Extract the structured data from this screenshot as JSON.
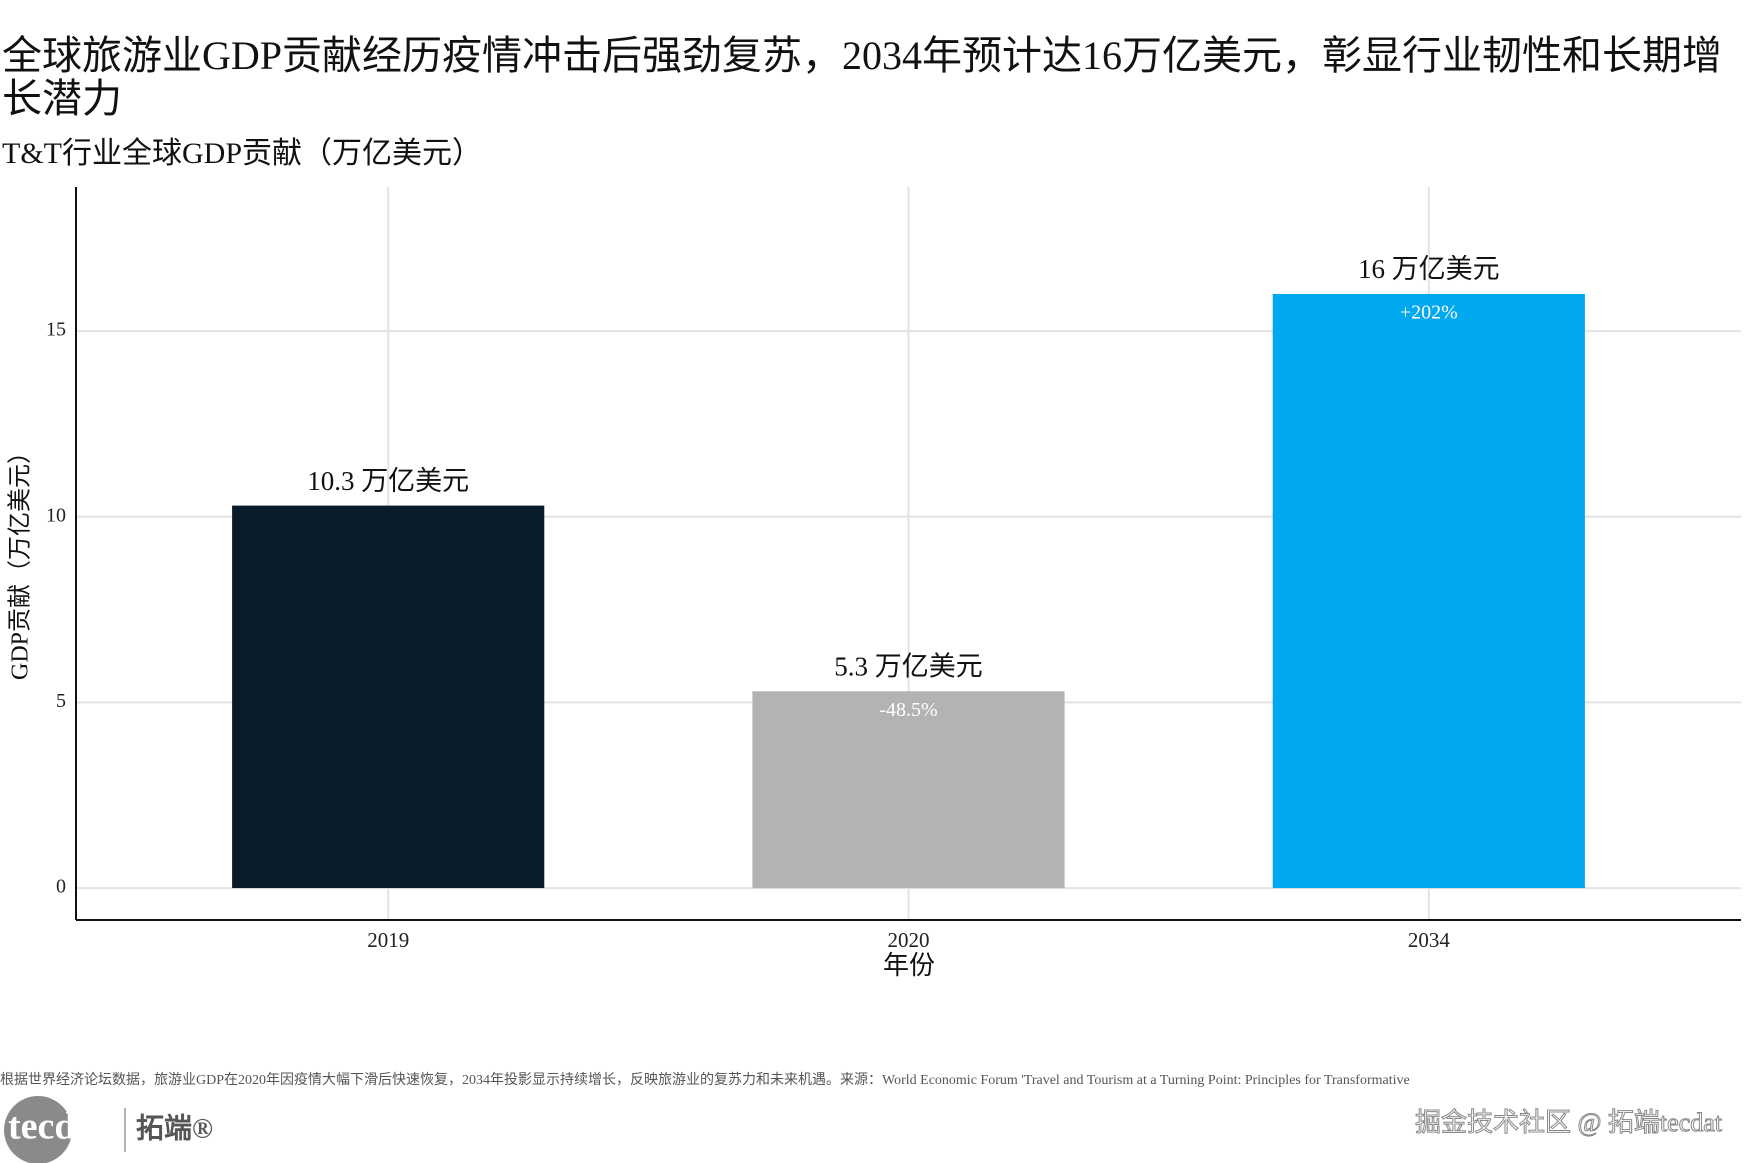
{
  "chart_data": {
    "type": "bar",
    "title": "全球旅游业GDP贡献经历疫情冲击后强劲复苏，2034年预计达16万亿美元，彰显行业韧性和长期增长潜力",
    "subtitle": "T&T行业全球GDP贡献（万亿美元）",
    "x_label": "年份",
    "y_label": "GDP贡献（万亿美元）",
    "categories": [
      "2019",
      "2020",
      "2034"
    ],
    "values": [
      10.3,
      5.3,
      16
    ],
    "value_labels": [
      "10.3 万亿美元",
      "5.3 万亿美元",
      "16 万亿美元"
    ],
    "change_labels": [
      null,
      "-48.5%",
      "+202%"
    ],
    "colors": [
      "#0a1b29",
      "#b3b3b3",
      "#00a8ef"
    ],
    "ylim": [
      -0.86,
      18.88
    ],
    "yticks": [
      0,
      5,
      10,
      15
    ],
    "grid": true,
    "caption": "根据世界经济论坛数据，旅游业GDP在2020年因疫情大幅下滑后快速恢复，2034年投影显示持续增长，反映旅游业的复苏力和未来机遇。来源：World Economic Forum 'Travel and Tourism at a Turning Point: Principles for Transformative",
    "logo_text": "tecdat",
    "logo_brand": "拓端®",
    "watermark": "掘金技术社区 @ 拓端tecdat"
  }
}
